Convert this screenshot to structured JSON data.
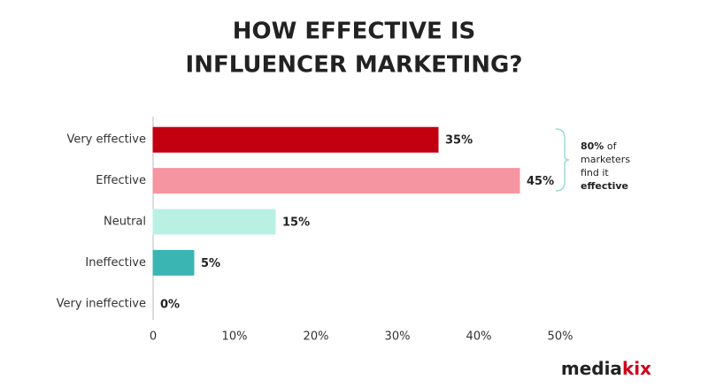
{
  "chart_data": {
    "type": "bar",
    "orientation": "horizontal",
    "title": [
      "HOW EFFECTIVE IS",
      "INFLUENCER MARKETING?"
    ],
    "categories": [
      "Very effective",
      "Effective",
      "Neutral",
      "Ineffective",
      "Very ineffective"
    ],
    "values": [
      35,
      45,
      15,
      5,
      0
    ],
    "value_labels": [
      "35%",
      "45%",
      "15%",
      "5%",
      "0%"
    ],
    "colors": [
      "#c3000f",
      "#f595a1",
      "#b9f0e4",
      "#3bb5b4",
      "#555555"
    ],
    "xlim": [
      0,
      50
    ],
    "xticks": [
      0,
      {
        "value": 10,
        "label": "10%"
      },
      {
        "value": 20,
        "label": "20%"
      },
      {
        "value": 30,
        "label": "30%"
      },
      {
        "value": 40,
        "label": "40%"
      },
      {
        "value": 50,
        "label": "50%"
      }
    ],
    "annotation": [
      [
        {
          "text": "80%",
          "bold": true
        },
        {
          "text": " of",
          "bold": false
        }
      ],
      [
        {
          "text": "marketers",
          "bold": false
        }
      ],
      [
        {
          "text": "find it",
          "bold": false
        }
      ],
      [
        {
          "text": "effective",
          "bold": true
        }
      ]
    ],
    "logo": [
      {
        "text": "media",
        "color": "#222222"
      },
      {
        "text": "kix",
        "color": "#d0021b"
      }
    ]
  }
}
